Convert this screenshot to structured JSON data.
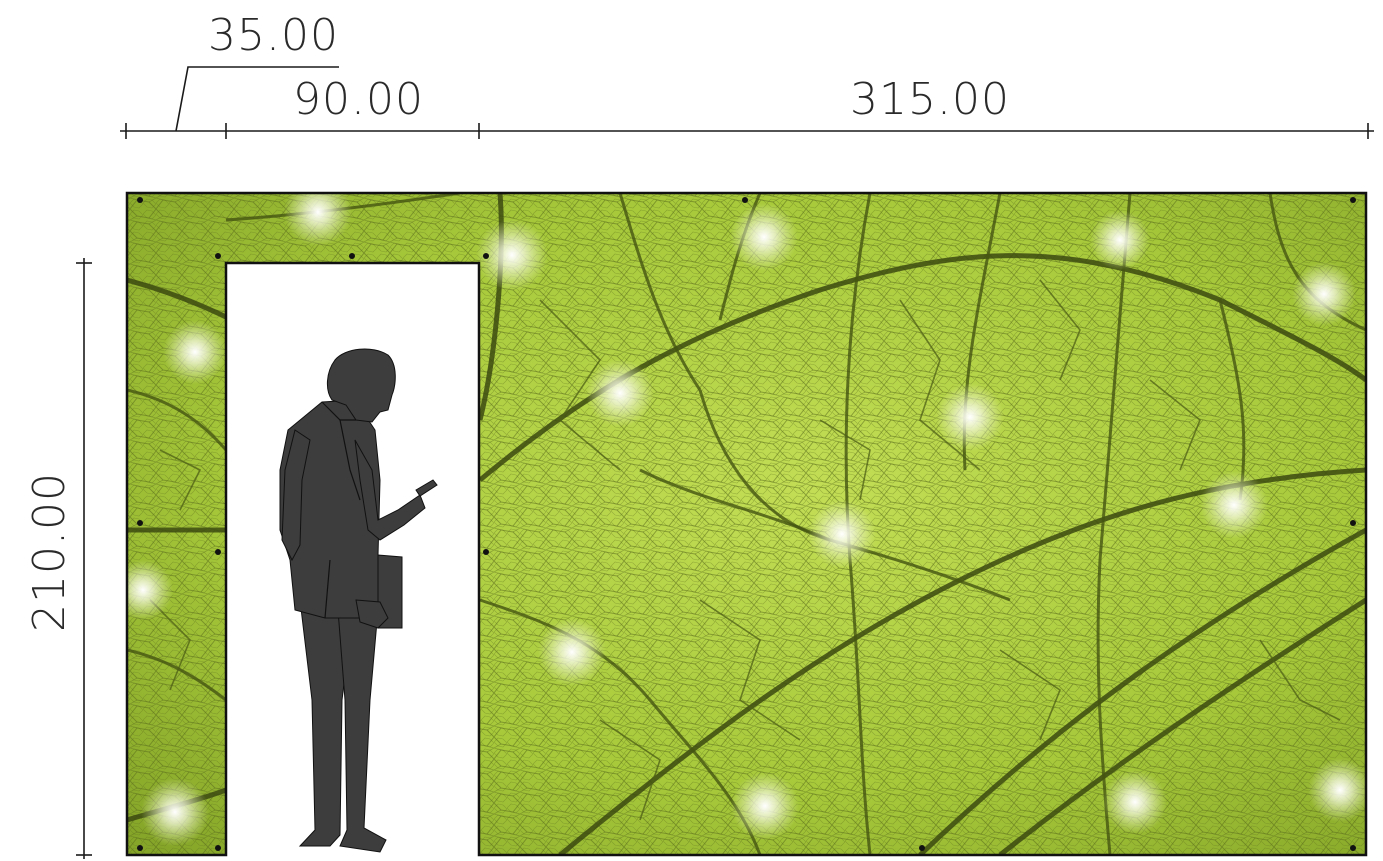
{
  "dimensions": {
    "return_width": "35.00",
    "door_width": "90.00",
    "wall_width": "315.00",
    "height": "210.00"
  },
  "panel": {
    "image": "leaf-vein-macro",
    "base_color": "#a7c93a",
    "light_color": "#d2e77a",
    "vein_color": "#3c4a10"
  },
  "figure": {
    "type": "person-silhouette-holding-phone",
    "fill_color": "#3d3d3d"
  }
}
